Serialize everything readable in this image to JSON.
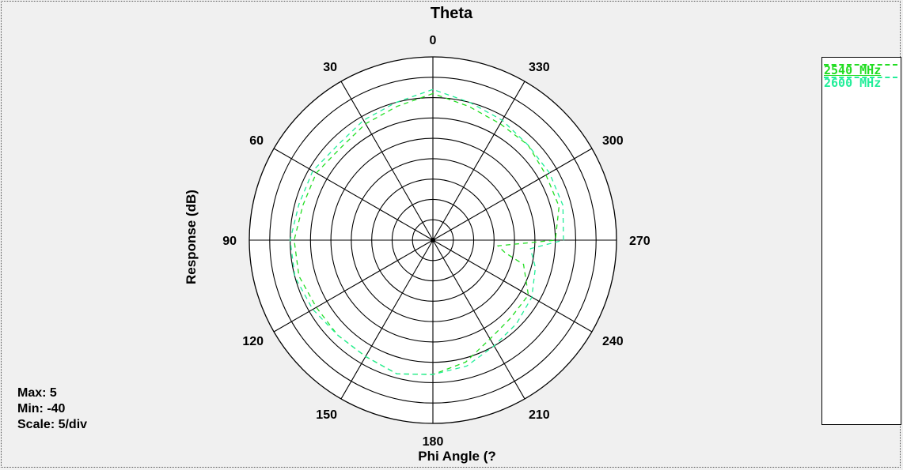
{
  "chart_data": {
    "type": "polar",
    "title": "Theta",
    "xlabel": "Phi Angle  (?",
    "ylabel": "Response  (dB)",
    "rlim": [
      -40,
      5
    ],
    "scale_step": 5,
    "angle_labels": [
      "0",
      "30",
      "60",
      "90",
      "120",
      "150",
      "180",
      "210",
      "240",
      "270",
      "300",
      "330"
    ],
    "angles_deg": [
      0,
      30,
      60,
      90,
      120,
      150,
      180,
      210,
      240,
      270,
      300,
      330
    ],
    "angle_direction": "counterclockwise",
    "zero_position": "top",
    "series": [
      {
        "name": "2540 MHz",
        "color": "#22dd22",
        "theta": [
          0,
          15,
          30,
          45,
          60,
          75,
          90,
          105,
          120,
          135,
          150,
          165,
          180,
          195,
          210,
          225,
          240,
          255,
          260,
          265,
          270,
          285,
          300,
          315,
          330,
          345
        ],
        "r": [
          -4,
          -6,
          -7,
          -8,
          -7,
          -7,
          -6,
          -6,
          -7,
          -7,
          -7,
          -6,
          -7,
          -9,
          -12,
          -13,
          -13,
          -17,
          -22,
          -24,
          -10,
          -8,
          -8,
          -7,
          -7,
          -6
        ]
      },
      {
        "name": "2600 MHz",
        "color": "#22ee99",
        "theta": [
          0,
          15,
          30,
          45,
          60,
          75,
          90,
          105,
          120,
          135,
          150,
          165,
          180,
          195,
          210,
          225,
          240,
          255,
          265,
          270,
          285,
          300,
          315,
          330,
          345
        ],
        "r": [
          -3,
          -5,
          -6,
          -7,
          -6,
          -6,
          -5,
          -5,
          -6,
          -7,
          -7,
          -6,
          -7,
          -8,
          -10,
          -11,
          -12,
          -14,
          -16,
          -8,
          -7,
          -7,
          -7,
          -6,
          -5
        ]
      }
    ],
    "legend_position": "right"
  },
  "stats": {
    "max": "Max: 5",
    "min": "Min: -40",
    "scale": "Scale: 5/div"
  },
  "legend": [
    "2540 MHz",
    "2600 MHz"
  ]
}
